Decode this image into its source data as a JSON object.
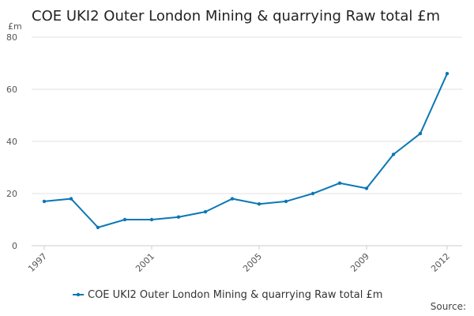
{
  "chart_data": {
    "type": "line",
    "title": "COE UKI2 Outer London Mining & quarrying Raw total £m",
    "y_label": "£m",
    "source": "Source:",
    "x": [
      1997,
      1998,
      1999,
      2000,
      2001,
      2002,
      2003,
      2004,
      2005,
      2006,
      2007,
      2008,
      2009,
      2010,
      2011,
      2012
    ],
    "series": [
      {
        "name": "COE UKI2 Outer London Mining & quarrying Raw total £m",
        "color": "#0b77b5",
        "values": [
          17,
          18,
          7,
          10,
          10,
          11,
          13,
          18,
          16,
          17,
          20,
          24,
          22,
          35,
          43,
          66
        ]
      }
    ],
    "xlim": [
      1997,
      2012
    ],
    "xticks": [
      1997,
      2001,
      2005,
      2009,
      2012
    ],
    "ylim": [
      0,
      80
    ],
    "yticks": [
      0,
      20,
      40,
      60,
      80
    ],
    "grid": true,
    "legend": "bottom"
  }
}
